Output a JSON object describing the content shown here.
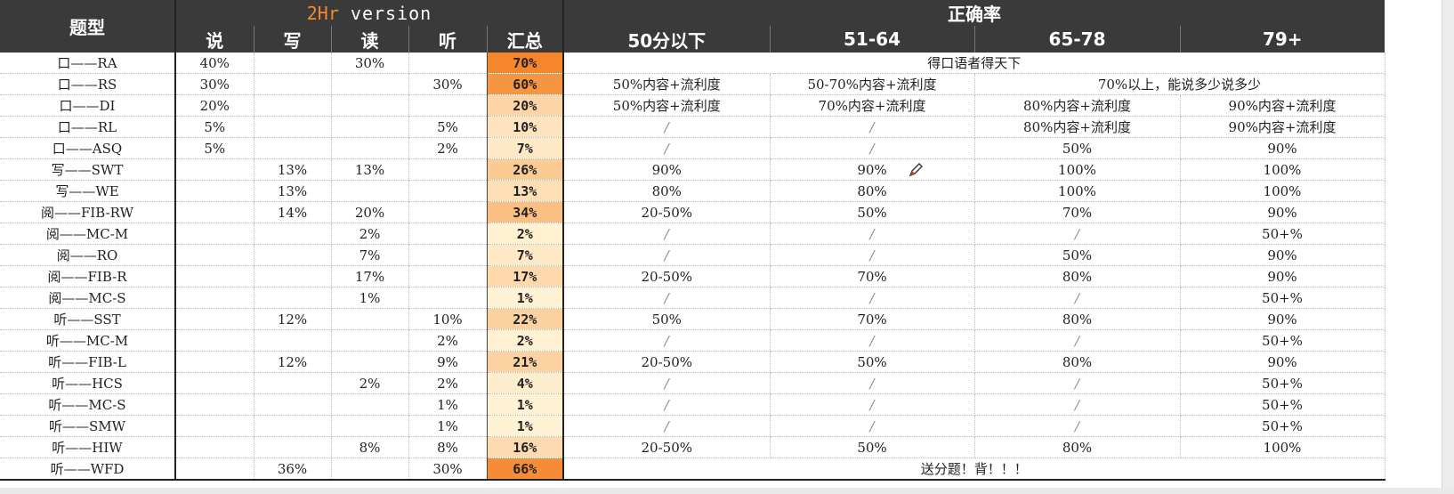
{
  "header": {
    "type_label": "题型",
    "version_brand": "2Hr",
    "version_text": " version",
    "accuracy_label": "正确率",
    "sub_cols": [
      "说",
      "写",
      "读",
      "听",
      "汇总"
    ],
    "score_bands": [
      "50分以下",
      "51-64",
      "65-78",
      "79+"
    ]
  },
  "rows": [
    {
      "type": "口——RA",
      "speak": "40%",
      "write": "",
      "read": "30%",
      "listen": "",
      "total": "70%",
      "total_pct": 70
    },
    {
      "type": "口——RS",
      "speak": "30%",
      "write": "",
      "read": "",
      "listen": "30%",
      "total": "60%",
      "total_pct": 60
    },
    {
      "type": "口——DI",
      "speak": "20%",
      "write": "",
      "read": "",
      "listen": "",
      "total": "20%",
      "total_pct": 20
    },
    {
      "type": "口——RL",
      "speak": "5%",
      "write": "",
      "read": "",
      "listen": "5%",
      "total": "10%",
      "total_pct": 10
    },
    {
      "type": "口——ASQ",
      "speak": "5%",
      "write": "",
      "read": "",
      "listen": "2%",
      "total": "7%",
      "total_pct": 7
    },
    {
      "type": "写——SWT",
      "speak": "",
      "write": "13%",
      "read": "13%",
      "listen": "",
      "total": "26%",
      "total_pct": 26
    },
    {
      "type": "写——WE",
      "speak": "",
      "write": "13%",
      "read": "",
      "listen": "",
      "total": "13%",
      "total_pct": 13
    },
    {
      "type": "阅——FIB-RW",
      "speak": "",
      "write": "14%",
      "read": "20%",
      "listen": "",
      "total": "34%",
      "total_pct": 34
    },
    {
      "type": "阅——MC-M",
      "speak": "",
      "write": "",
      "read": "2%",
      "listen": "",
      "total": "2%",
      "total_pct": 2
    },
    {
      "type": "阅——RO",
      "speak": "",
      "write": "",
      "read": "7%",
      "listen": "",
      "total": "7%",
      "total_pct": 7
    },
    {
      "type": "阅——FIB-R",
      "speak": "",
      "write": "",
      "read": "17%",
      "listen": "",
      "total": "17%",
      "total_pct": 17
    },
    {
      "type": "阅——MC-S",
      "speak": "",
      "write": "",
      "read": "1%",
      "listen": "",
      "total": "1%",
      "total_pct": 1
    },
    {
      "type": "听——SST",
      "speak": "",
      "write": "12%",
      "read": "",
      "listen": "10%",
      "total": "22%",
      "total_pct": 22
    },
    {
      "type": "听——MC-M",
      "speak": "",
      "write": "",
      "read": "",
      "listen": "2%",
      "total": "2%",
      "total_pct": 2
    },
    {
      "type": "听——FIB-L",
      "speak": "",
      "write": "12%",
      "read": "",
      "listen": "9%",
      "total": "21%",
      "total_pct": 21
    },
    {
      "type": "听——HCS",
      "speak": "",
      "write": "",
      "read": "2%",
      "listen": "2%",
      "total": "4%",
      "total_pct": 4
    },
    {
      "type": "听——MC-S",
      "speak": "",
      "write": "",
      "read": "",
      "listen": "1%",
      "total": "1%",
      "total_pct": 1
    },
    {
      "type": "听——SMW",
      "speak": "",
      "write": "",
      "read": "",
      "listen": "1%",
      "total": "1%",
      "total_pct": 1
    },
    {
      "type": "听——HIW",
      "speak": "",
      "write": "",
      "read": "8%",
      "listen": "8%",
      "total": "16%",
      "total_pct": 16
    },
    {
      "type": "听——WFD",
      "speak": "",
      "write": "36%",
      "read": "",
      "listen": "30%",
      "total": "66%",
      "total_pct": 66
    }
  ],
  "accuracy": [
    {
      "span": 4,
      "cells": [
        "得口语者得天下"
      ]
    },
    {
      "span": [
        1,
        1,
        2
      ],
      "cells": [
        "50%内容+流利度",
        "50-70%内容+流利度",
        "70%以上，能说多少说多少"
      ]
    },
    {
      "cells": [
        "50%内容+流利度",
        "70%内容+流利度",
        "80%内容+流利度",
        "90%内容+流利度"
      ]
    },
    {
      "cells": [
        "/",
        "/",
        "80%内容+流利度",
        "90%内容+流利度"
      ]
    },
    {
      "cells": [
        "/",
        "/",
        "50%",
        "90%"
      ]
    },
    {
      "cells": [
        "90%",
        "90%",
        "100%",
        "100%"
      ]
    },
    {
      "cells": [
        "80%",
        "80%",
        "100%",
        "100%"
      ]
    },
    {
      "cells": [
        "20-50%",
        "50%",
        "70%",
        "90%"
      ]
    },
    {
      "cells": [
        "/",
        "/",
        "/",
        "50+%"
      ]
    },
    {
      "cells": [
        "/",
        "/",
        "50%",
        "90%"
      ]
    },
    {
      "cells": [
        "20-50%",
        "70%",
        "80%",
        "90%"
      ]
    },
    {
      "cells": [
        "/",
        "/",
        "/",
        "50+%"
      ]
    },
    {
      "cells": [
        "50%",
        "70%",
        "80%",
        "90%"
      ]
    },
    {
      "cells": [
        "/",
        "/",
        "/",
        "50+%"
      ]
    },
    {
      "cells": [
        "20-50%",
        "50%",
        "80%",
        "90%"
      ]
    },
    {
      "cells": [
        "/",
        "/",
        "/",
        "50+%"
      ]
    },
    {
      "cells": [
        "/",
        "/",
        "/",
        "50+%"
      ]
    },
    {
      "cells": [
        "/",
        "/",
        "/",
        "50+%"
      ]
    },
    {
      "cells": [
        "20-50%",
        "50%",
        "80%",
        "100%"
      ]
    },
    {
      "span": 4,
      "cells": [
        "送分题！背！！！"
      ]
    }
  ],
  "colors": {
    "header_bg": "#3a3a3a",
    "brand_orange": "#f28a2e",
    "heat_high": "#f5862b",
    "heat_low": "#fff3d6"
  },
  "icons": {
    "cursor": "pen-cursor-icon"
  }
}
